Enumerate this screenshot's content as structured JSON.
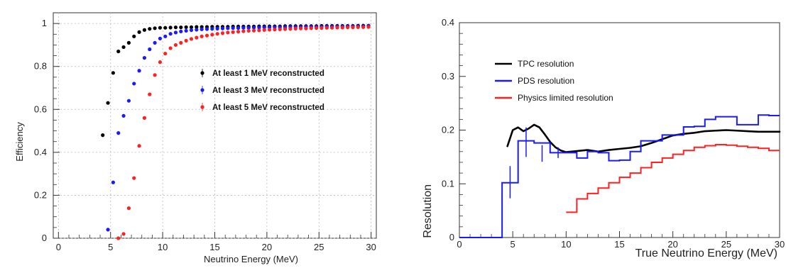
{
  "chart_data": [
    {
      "type": "scatter",
      "xlabel": "Neutrino Energy (MeV)",
      "ylabel": "Efficiency",
      "xlim": [
        -0.5,
        30.5
      ],
      "ylim": [
        0,
        1.05
      ],
      "xticks": [
        "0",
        "5",
        "10",
        "15",
        "20",
        "25",
        "30"
      ],
      "yticks": [
        "0",
        "0.2",
        "0.4",
        "0.6",
        "0.8",
        "1"
      ],
      "legend_position": "right-center",
      "series": [
        {
          "name": "At least 1 MeV reconstructed",
          "color": "#000000",
          "x": [
            4.25,
            4.75,
            5.25,
            5.75,
            6.25,
            6.75,
            7.25,
            7.75,
            8.25,
            8.75,
            9.25,
            9.75,
            10.25,
            10.75,
            11.25,
            11.75,
            12.25,
            12.75,
            13.25,
            13.75,
            14.25,
            14.75,
            15.25,
            15.75,
            16.25,
            16.75,
            17.25,
            17.75,
            18.25,
            18.75,
            19.25,
            19.75,
            20.25,
            20.75,
            21.25,
            21.75,
            22.25,
            22.75,
            23.25,
            23.75,
            24.25,
            24.75,
            25.25,
            25.75,
            26.25,
            26.75,
            27.25,
            27.75,
            28.25,
            28.75,
            29.25,
            29.75
          ],
          "y": [
            0.48,
            0.63,
            0.77,
            0.87,
            0.89,
            0.91,
            0.94,
            0.96,
            0.97,
            0.975,
            0.978,
            0.98,
            0.98,
            0.981,
            0.982,
            0.982,
            0.983,
            0.983,
            0.984,
            0.984,
            0.984,
            0.985,
            0.985,
            0.985,
            0.985,
            0.986,
            0.986,
            0.986,
            0.986,
            0.986,
            0.987,
            0.987,
            0.987,
            0.987,
            0.987,
            0.988,
            0.988,
            0.988,
            0.988,
            0.988,
            0.988,
            0.988,
            0.989,
            0.989,
            0.989,
            0.989,
            0.989,
            0.989,
            0.989,
            0.99,
            0.99,
            0.99
          ]
        },
        {
          "name": "At least 3 MeV reconstructed",
          "color": "#1a1aff",
          "x": [
            4.75,
            5.25,
            5.75,
            6.25,
            6.75,
            7.25,
            7.75,
            8.25,
            8.75,
            9.25,
            9.75,
            10.25,
            10.75,
            11.25,
            11.75,
            12.25,
            12.75,
            13.25,
            13.75,
            14.25,
            14.75,
            15.25,
            15.75,
            16.25,
            16.75,
            17.25,
            17.75,
            18.25,
            18.75,
            19.25,
            19.75,
            20.25,
            20.75,
            21.25,
            21.75,
            22.25,
            22.75,
            23.25,
            23.75,
            24.25,
            24.75,
            25.25,
            25.75,
            26.25,
            26.75,
            27.25,
            27.75,
            28.25,
            28.75,
            29.25,
            29.75
          ],
          "y": [
            0.04,
            0.26,
            0.49,
            0.57,
            0.64,
            0.72,
            0.78,
            0.84,
            0.88,
            0.91,
            0.93,
            0.94,
            0.952,
            0.958,
            0.963,
            0.966,
            0.969,
            0.971,
            0.973,
            0.974,
            0.975,
            0.976,
            0.977,
            0.978,
            0.979,
            0.979,
            0.98,
            0.98,
            0.981,
            0.981,
            0.982,
            0.982,
            0.983,
            0.983,
            0.983,
            0.984,
            0.984,
            0.984,
            0.985,
            0.985,
            0.985,
            0.985,
            0.986,
            0.986,
            0.986,
            0.986,
            0.987,
            0.987,
            0.987,
            0.987,
            0.988
          ]
        },
        {
          "name": "At least 5 MeV reconstructed",
          "color": "#ff2020",
          "x": [
            5.75,
            6.25,
            6.75,
            7.25,
            7.75,
            8.25,
            8.75,
            9.25,
            9.75,
            10.25,
            10.75,
            11.25,
            11.75,
            12.25,
            12.75,
            13.25,
            13.75,
            14.25,
            14.75,
            15.25,
            15.75,
            16.25,
            16.75,
            17.25,
            17.75,
            18.25,
            18.75,
            19.25,
            19.75,
            20.25,
            20.75,
            21.25,
            21.75,
            22.25,
            22.75,
            23.25,
            23.75,
            24.25,
            24.75,
            25.25,
            25.75,
            26.25,
            26.75,
            27.25,
            27.75,
            28.25,
            28.75,
            29.25,
            29.75
          ],
          "y": [
            0.0,
            0.02,
            0.14,
            0.28,
            0.43,
            0.56,
            0.67,
            0.76,
            0.82,
            0.86,
            0.885,
            0.9,
            0.91,
            0.92,
            0.928,
            0.934,
            0.94,
            0.944,
            0.948,
            0.952,
            0.955,
            0.958,
            0.96,
            0.962,
            0.964,
            0.966,
            0.967,
            0.968,
            0.97,
            0.971,
            0.972,
            0.973,
            0.974,
            0.975,
            0.976,
            0.977,
            0.977,
            0.978,
            0.979,
            0.979,
            0.98,
            0.98,
            0.981,
            0.981,
            0.982,
            0.982,
            0.983,
            0.983,
            0.984
          ]
        }
      ]
    },
    {
      "type": "line",
      "xlabel": "True Neutrino Energy (MeV)",
      "ylabel": "Resolution",
      "xlim": [
        0,
        30
      ],
      "ylim": [
        0,
        0.4
      ],
      "xticks": [
        "0",
        "5",
        "10",
        "15",
        "20",
        "25",
        "30"
      ],
      "yticks": [
        "0",
        "0.1",
        "0.2",
        "0.3",
        "0.4"
      ],
      "legend_position": "top-left",
      "series": [
        {
          "name": "TPC resolution",
          "color": "#000000",
          "style": "smooth",
          "x": [
            4.5,
            5.0,
            5.5,
            6.0,
            6.5,
            7.0,
            7.5,
            8.0,
            8.5,
            9.0,
            9.5,
            10.0,
            11,
            12,
            13,
            14,
            15,
            16,
            17,
            18,
            19,
            20,
            21,
            22,
            23,
            24,
            25,
            26,
            27,
            28,
            29,
            30
          ],
          "y": [
            0.17,
            0.2,
            0.205,
            0.198,
            0.203,
            0.21,
            0.205,
            0.192,
            0.178,
            0.168,
            0.162,
            0.159,
            0.161,
            0.163,
            0.16,
            0.163,
            0.165,
            0.167,
            0.17,
            0.176,
            0.183,
            0.19,
            0.193,
            0.195,
            0.198,
            0.199,
            0.2,
            0.199,
            0.198,
            0.197,
            0.197,
            0.197
          ]
        },
        {
          "name": "PDS resolution",
          "color": "#1a1aff",
          "style": "step",
          "edges": [
            0,
            2,
            4,
            5.5,
            7,
            8.5,
            10,
            11,
            12,
            13,
            14,
            15,
            16,
            17,
            18,
            19,
            20,
            21,
            22,
            23,
            24,
            25,
            26,
            27,
            28,
            29,
            30
          ],
          "values": [
            0,
            0,
            0.102,
            0.18,
            0.176,
            0.158,
            0.158,
            0.148,
            0.16,
            0.158,
            0.143,
            0.144,
            0.16,
            0.18,
            0.18,
            0.191,
            0.191,
            0.206,
            0.207,
            0.22,
            0.225,
            0.225,
            0.21,
            0.21,
            0.228,
            0.227
          ],
          "error_bars": [
            {
              "x": 4.75,
              "low": 0.073,
              "high": 0.133
            },
            {
              "x": 6.25,
              "low": 0.15,
              "high": 0.205
            },
            {
              "x": 7.75,
              "low": 0.141,
              "high": 0.172
            },
            {
              "x": 9.25,
              "low": 0.148,
              "high": 0.168
            }
          ]
        },
        {
          "name": "Physics limited resolution",
          "color": "#ff2020",
          "style": "step",
          "edges": [
            10,
            11,
            12,
            13,
            14,
            15,
            16,
            17,
            18,
            19,
            20,
            21,
            22,
            23,
            24,
            25,
            26,
            27,
            28,
            29,
            30
          ],
          "values": [
            0.047,
            0.072,
            0.082,
            0.092,
            0.102,
            0.112,
            0.12,
            0.13,
            0.14,
            0.148,
            0.155,
            0.162,
            0.168,
            0.171,
            0.173,
            0.172,
            0.17,
            0.168,
            0.166,
            0.162
          ]
        }
      ]
    }
  ]
}
